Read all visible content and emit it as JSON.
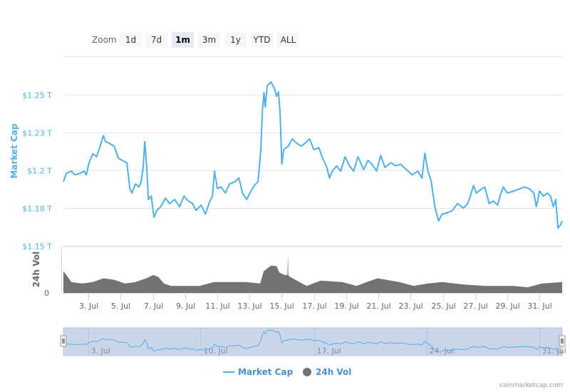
{
  "zoom": {
    "label": "Zoom",
    "buttons": [
      {
        "label": "1d",
        "selected": false
      },
      {
        "label": "7d",
        "selected": false
      },
      {
        "label": "1m",
        "selected": true
      },
      {
        "label": "3m",
        "selected": false
      },
      {
        "label": "1y",
        "selected": false
      },
      {
        "label": "YTD",
        "selected": false
      },
      {
        "label": "ALL",
        "selected": false
      }
    ]
  },
  "credit": "coinmarketcap.com",
  "colors": {
    "market_cap": "#4fb0ea",
    "volume": "#737373",
    "navigator_mask": "#ccd6eb",
    "axis_label": "#4fb0ea"
  },
  "chart_data": {
    "type": "line",
    "x_tick_labels": [
      "3. Jul",
      "5. Jul",
      "7. Jul",
      "9. Jul",
      "11. Jul",
      "13. Jul",
      "15. Jul",
      "17. Jul",
      "19. Jul",
      "21. Jul",
      "23. Jul",
      "25. Jul",
      "27. Jul",
      "29. Jul",
      "31. Jul"
    ],
    "x_ticks": [
      3,
      5,
      7,
      9,
      11,
      13,
      15,
      17,
      19,
      21,
      23,
      25,
      27,
      29,
      31
    ],
    "xlim": [
      1.45,
      32.4
    ],
    "market_cap": {
      "ylabel": "Market Cap",
      "y_tick_labels": [
        "$1.25 T",
        "$1.23 T",
        "$1.2 T",
        "$1.18 T",
        "$1.15 T"
      ],
      "y_ticks": [
        1.25,
        1.225,
        1.2,
        1.175,
        1.15
      ],
      "ylim": [
        1.15,
        1.27
      ],
      "grid": true,
      "points": [
        [
          1.45,
          1.1925
        ],
        [
          1.63,
          1.198
        ],
        [
          1.94,
          1.1995
        ],
        [
          2.16,
          1.197
        ],
        [
          2.47,
          1.198
        ],
        [
          2.73,
          1.1995
        ],
        [
          2.87,
          1.197
        ],
        [
          3.04,
          1.205
        ],
        [
          3.27,
          1.211
        ],
        [
          3.5,
          1.209
        ],
        [
          3.7,
          1.215
        ],
        [
          3.93,
          1.223
        ],
        [
          4.06,
          1.219
        ],
        [
          4.28,
          1.218
        ],
        [
          4.6,
          1.216
        ],
        [
          4.86,
          1.208
        ],
        [
          5.12,
          1.2065
        ],
        [
          5.39,
          1.205
        ],
        [
          5.57,
          1.188
        ],
        [
          5.7,
          1.185
        ],
        [
          5.92,
          1.191
        ],
        [
          6.14,
          1.189
        ],
        [
          6.27,
          1.1925
        ],
        [
          6.4,
          1.202
        ],
        [
          6.5,
          1.219
        ],
        [
          6.63,
          1.2005
        ],
        [
          6.72,
          1.1807
        ],
        [
          6.9,
          1.183
        ],
        [
          7.07,
          1.169
        ],
        [
          7.25,
          1.1735
        ],
        [
          7.5,
          1.176
        ],
        [
          7.78,
          1.1816
        ],
        [
          8.04,
          1.178
        ],
        [
          8.35,
          1.1807
        ],
        [
          8.66,
          1.176
        ],
        [
          8.93,
          1.183
        ],
        [
          9.2,
          1.1797
        ],
        [
          9.46,
          1.178
        ],
        [
          9.68,
          1.1735
        ],
        [
          10.0,
          1.177
        ],
        [
          10.26,
          1.171
        ],
        [
          10.48,
          1.178
        ],
        [
          10.7,
          1.183
        ],
        [
          10.83,
          1.1995
        ],
        [
          11.0,
          1.188
        ],
        [
          11.23,
          1.189
        ],
        [
          11.5,
          1.185
        ],
        [
          11.76,
          1.191
        ],
        [
          12.1,
          1.1925
        ],
        [
          12.34,
          1.195
        ],
        [
          12.56,
          1.185
        ],
        [
          12.82,
          1.1807
        ],
        [
          13.09,
          1.1863
        ],
        [
          13.3,
          1.19
        ],
        [
          13.53,
          1.1925
        ],
        [
          13.7,
          1.2137
        ],
        [
          13.8,
          1.2396
        ],
        [
          13.9,
          1.2514
        ],
        [
          13.97,
          1.242
        ],
        [
          14.1,
          1.256
        ],
        [
          14.33,
          1.2585
        ],
        [
          14.55,
          1.254
        ],
        [
          14.68,
          1.249
        ],
        [
          14.8,
          1.252
        ],
        [
          14.9,
          1.237
        ],
        [
          15.0,
          1.204
        ],
        [
          15.12,
          1.2137
        ],
        [
          15.4,
          1.216
        ],
        [
          15.65,
          1.2208
        ],
        [
          15.92,
          1.218
        ],
        [
          16.2,
          1.216
        ],
        [
          16.45,
          1.218
        ],
        [
          16.72,
          1.2208
        ],
        [
          17.0,
          1.2137
        ],
        [
          17.3,
          1.215
        ],
        [
          17.5,
          1.209
        ],
        [
          17.8,
          1.2019
        ],
        [
          17.96,
          1.1948
        ],
        [
          18.13,
          1.1995
        ],
        [
          18.4,
          1.203
        ],
        [
          18.66,
          1.1995
        ],
        [
          18.93,
          1.209
        ],
        [
          19.2,
          1.203
        ],
        [
          19.46,
          1.1995
        ],
        [
          19.73,
          1.209
        ],
        [
          20.08,
          1.2005
        ],
        [
          20.35,
          1.2066
        ],
        [
          20.6,
          1.204
        ],
        [
          20.88,
          1.1995
        ],
        [
          21.14,
          1.2099
        ],
        [
          21.4,
          1.2019
        ],
        [
          21.76,
          1.205
        ],
        [
          22.07,
          1.203
        ],
        [
          22.38,
          1.204
        ],
        [
          22.73,
          1.2005
        ],
        [
          23.09,
          1.197
        ],
        [
          23.44,
          1.1995
        ],
        [
          23.7,
          1.1948
        ],
        [
          23.88,
          1.2113
        ],
        [
          24.07,
          1.1995
        ],
        [
          24.28,
          1.1925
        ],
        [
          24.5,
          1.176
        ],
        [
          24.73,
          1.1665
        ],
        [
          24.95,
          1.171
        ],
        [
          25.3,
          1.172
        ],
        [
          25.6,
          1.1735
        ],
        [
          25.9,
          1.178
        ],
        [
          26.27,
          1.175
        ],
        [
          26.54,
          1.178
        ],
        [
          26.7,
          1.183
        ],
        [
          26.9,
          1.19
        ],
        [
          27.07,
          1.185
        ],
        [
          27.4,
          1.1877
        ],
        [
          27.6,
          1.189
        ],
        [
          27.87,
          1.178
        ],
        [
          28.13,
          1.1797
        ],
        [
          28.4,
          1.177
        ],
        [
          28.58,
          1.1844
        ],
        [
          28.75,
          1.189
        ],
        [
          29.0,
          1.185
        ],
        [
          29.4,
          1.1863
        ],
        [
          29.75,
          1.1877
        ],
        [
          30.06,
          1.189
        ],
        [
          30.37,
          1.1877
        ],
        [
          30.64,
          1.185
        ],
        [
          30.8,
          1.176
        ],
        [
          31.0,
          1.1863
        ],
        [
          31.23,
          1.183
        ],
        [
          31.5,
          1.185
        ],
        [
          31.67,
          1.183
        ],
        [
          31.85,
          1.176
        ],
        [
          32.0,
          1.1807
        ],
        [
          32.14,
          1.1618
        ],
        [
          32.3,
          1.164
        ],
        [
          32.4,
          1.1665
        ]
      ]
    },
    "volume": {
      "type": "area",
      "ylabel": "24h Vol",
      "y_tick_labels": [
        "0"
      ],
      "ylim": [
        0,
        100
      ],
      "points": [
        [
          1.45,
          46
        ],
        [
          1.63,
          38
        ],
        [
          1.94,
          23
        ],
        [
          2.6,
          20
        ],
        [
          3.27,
          23
        ],
        [
          3.93,
          31
        ],
        [
          4.6,
          28
        ],
        [
          5.26,
          20
        ],
        [
          5.92,
          23
        ],
        [
          6.59,
          31
        ],
        [
          7.03,
          38
        ],
        [
          7.34,
          34
        ],
        [
          7.69,
          20
        ],
        [
          8.13,
          15
        ],
        [
          9.9,
          15
        ],
        [
          10.79,
          23
        ],
        [
          11.67,
          23
        ],
        [
          12.78,
          23
        ],
        [
          13.66,
          20
        ],
        [
          13.88,
          46
        ],
        [
          14.33,
          58
        ],
        [
          14.68,
          57
        ],
        [
          14.86,
          43
        ],
        [
          15.2,
          38
        ],
        [
          15.35,
          38
        ],
        [
          15.38,
          80
        ],
        [
          15.41,
          38
        ],
        [
          15.47,
          35
        ],
        [
          16.1,
          23
        ],
        [
          16.54,
          15
        ],
        [
          17.42,
          26
        ],
        [
          18.75,
          23
        ],
        [
          19.64,
          15
        ],
        [
          20.52,
          26
        ],
        [
          20.96,
          31
        ],
        [
          22.29,
          23
        ],
        [
          23.18,
          15
        ],
        [
          24.06,
          20
        ],
        [
          24.95,
          23
        ],
        [
          26.27,
          18
        ],
        [
          27.6,
          15
        ],
        [
          29.37,
          15
        ],
        [
          30.26,
          12
        ],
        [
          31.14,
          20
        ],
        [
          32.4,
          23
        ]
      ]
    },
    "navigator": {
      "x_tick_labels": [
        "3. Jul",
        "10. Jul",
        "17. Jul",
        "24. Jul",
        "31. Jul"
      ],
      "x_ticks": [
        3,
        10,
        17,
        24,
        31
      ]
    },
    "legend": {
      "placement": "bottom",
      "items": [
        {
          "name": "Market Cap",
          "symbol": "line"
        },
        {
          "name": "24h Vol",
          "symbol": "circle"
        }
      ]
    }
  }
}
